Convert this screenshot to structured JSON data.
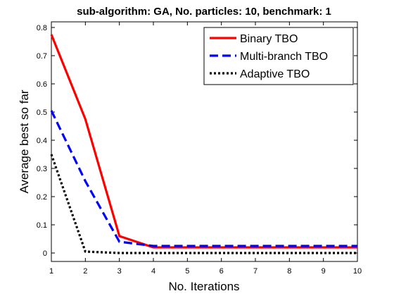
{
  "chart_data": {
    "type": "line",
    "title": "sub-algorithm: GA, No. particles: 10, benchmark: 1",
    "xlabel": "No. Iterations",
    "ylabel": "Average best so far",
    "x": [
      1,
      2,
      3,
      4,
      5,
      6,
      7,
      8,
      9,
      10
    ],
    "xlim": [
      1,
      10
    ],
    "ylim": [
      -0.03,
      0.82
    ],
    "xticks": [
      "1",
      "2",
      "3",
      "4",
      "5",
      "6",
      "7",
      "8",
      "9",
      "10"
    ],
    "yticks": [
      "0",
      "0.1",
      "0.2",
      "0.3",
      "0.4",
      "0.5",
      "0.6",
      "0.7",
      "0.8"
    ],
    "grid": false,
    "legend_position": "top-right",
    "series": [
      {
        "name": "Binary TBO",
        "color": "#ff0000",
        "style": "solid",
        "values": [
          0.775,
          0.475,
          0.06,
          0.02,
          0.02,
          0.02,
          0.02,
          0.02,
          0.02,
          0.02
        ]
      },
      {
        "name": "Multi-branch TBO",
        "color": "#0000ff",
        "style": "dashed",
        "values": [
          0.505,
          0.255,
          0.04,
          0.025,
          0.025,
          0.025,
          0.025,
          0.025,
          0.025,
          0.025
        ]
      },
      {
        "name": "Adaptive TBO",
        "color": "#000000",
        "style": "dotted",
        "values": [
          0.35,
          0.005,
          0.0,
          0.0,
          0.0,
          0.0,
          0.0,
          0.0,
          0.0,
          0.0
        ]
      }
    ]
  }
}
